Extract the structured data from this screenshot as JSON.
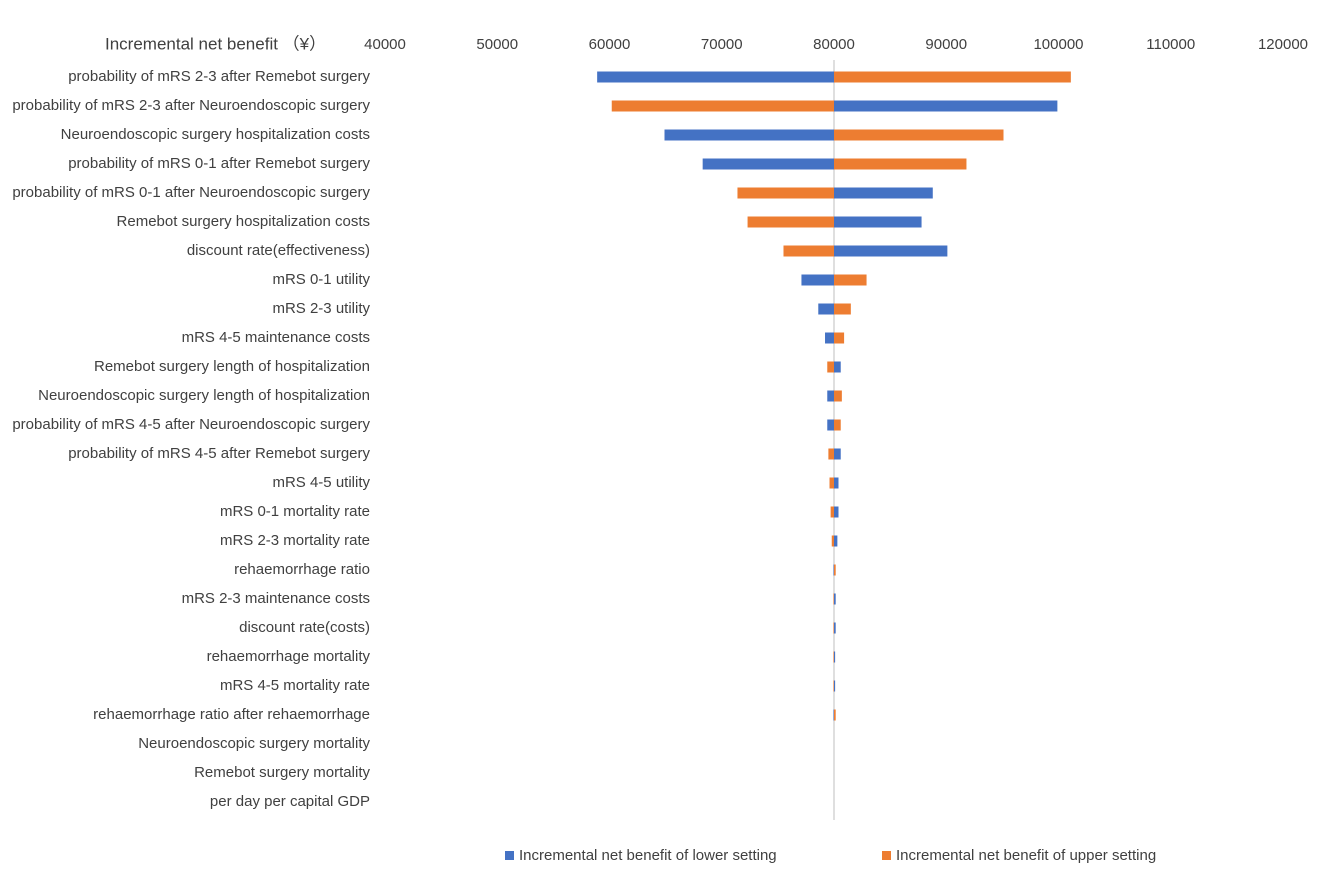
{
  "chart_data": {
    "type": "tornado",
    "title": "Incremental net benefit （¥）",
    "categories": [
      "probability of mRS 2-3 after Remebot surgery",
      "probability of mRS 2-3 after Neuroendoscopic surgery",
      "Neuroendoscopic surgery hospitalization costs",
      "probability of mRS 0-1 after Remebot surgery",
      "probability of mRS 0-1 after Neuroendoscopic surgery",
      "Remebot surgery hospitalization costs",
      "discount rate(effectiveness)",
      "mRS 0-1 utility",
      "mRS 2-3 utility",
      "mRS 4-5 maintenance costs",
      "Remebot surgery length of hospitalization",
      "Neuroendoscopic surgery length of hospitalization",
      "probability of mRS 4-5 after Neuroendoscopic surgery",
      "probability of mRS 4-5 after Remebot surgery",
      "mRS 4-5 utility",
      "mRS 0-1 mortality rate",
      "mRS 2-3 mortality rate",
      "rehaemorrhage ratio",
      "mRS 2-3 maintenance costs",
      "discount rate(costs)",
      "rehaemorrhage mortality",
      "mRS 4-5 mortality rate",
      "rehaemorrhage ratio after rehaemorrhage",
      "Neuroendoscopic surgery mortality",
      "Remebot surgery mortality",
      "per day per capital GDP"
    ],
    "base": 80000,
    "series": [
      {
        "name": "Incremental net benefit of lower setting",
        "color": "#4472c4",
        "values": [
          58900,
          99900,
          64900,
          68300,
          88800,
          87800,
          90100,
          77100,
          78600,
          79200,
          80600,
          79400,
          79400,
          80600,
          80400,
          80400,
          80300,
          79950,
          80150,
          80150,
          80100,
          80100,
          79950,
          80000,
          80000,
          80000
        ]
      },
      {
        "name": "Incremental net benefit of upper setting",
        "color": "#ed7d31",
        "values": [
          101100,
          60200,
          95100,
          91800,
          71400,
          72300,
          75500,
          82900,
          81500,
          80900,
          79400,
          80700,
          80600,
          79500,
          79600,
          79700,
          79800,
          80150,
          79950,
          79950,
          79950,
          79950,
          80150,
          80000,
          80000,
          80000
        ]
      }
    ],
    "xlim": [
      40000,
      120000
    ],
    "xticks": [
      40000,
      50000,
      60000,
      70000,
      80000,
      90000,
      100000,
      110000,
      120000
    ],
    "legend": "bottom"
  }
}
